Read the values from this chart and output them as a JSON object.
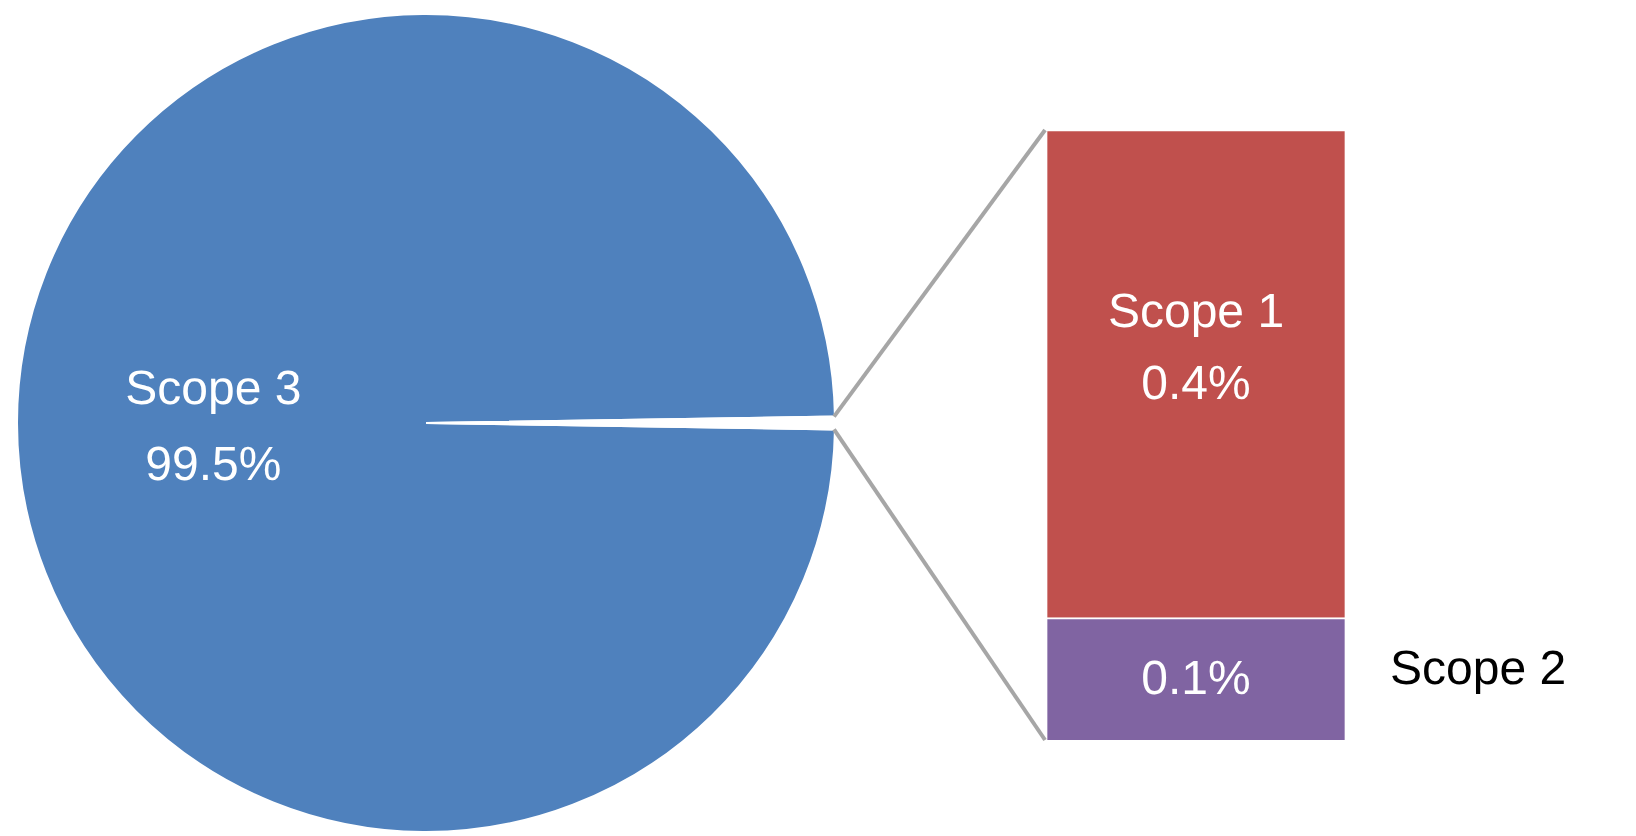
{
  "chart_data": [
    {
      "type": "pie",
      "categories": [
        "Scope 3",
        null
      ],
      "values": [
        99.5,
        0.5
      ],
      "colors": [
        "#4f81bd",
        "#ffffff"
      ],
      "value_labels": [
        "99.5%",
        null
      ]
    },
    {
      "type": "bar",
      "categories": [
        null
      ],
      "stacked": true,
      "tick_labels": false,
      "series": [
        {
          "name": "Scope 2",
          "color": "#8064a2",
          "values": [
            0.1
          ],
          "value_labels": [
            "0.1%"
          ]
        },
        {
          "name": "Scope 1",
          "color": "#c0504d",
          "values": [
            0.4
          ],
          "value_labels": [
            "0.4%"
          ]
        }
      ]
    }
  ]
}
